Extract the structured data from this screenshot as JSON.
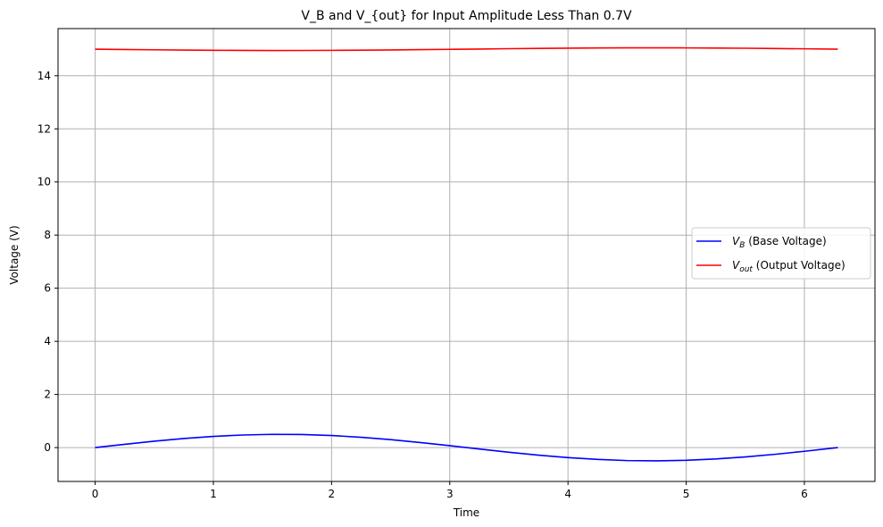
{
  "chart_data": {
    "type": "line",
    "title": "V_B and V_{out} for Input Amplitude Less Than 0.7V",
    "xlabel": "Time",
    "ylabel": "Voltage (V)",
    "xlim": [
      -0.314,
      6.597
    ],
    "ylim": [
      -1.275,
      15.775
    ],
    "xticks": [
      0,
      1,
      2,
      3,
      4,
      5,
      6
    ],
    "yticks": [
      0,
      2,
      4,
      6,
      8,
      10,
      12,
      14
    ],
    "xtick_labels": [
      "0",
      "1",
      "2",
      "3",
      "4",
      "5",
      "6"
    ],
    "ytick_labels": [
      "0",
      "2",
      "4",
      "6",
      "8",
      "10",
      "12",
      "14"
    ],
    "grid": true,
    "legend_position": "center-right",
    "x": [
      0,
      0.25,
      0.5,
      0.75,
      1.0,
      1.25,
      1.5,
      1.75,
      2.0,
      2.25,
      2.5,
      2.75,
      3.0,
      3.25,
      3.5,
      3.75,
      4.0,
      4.25,
      4.5,
      4.75,
      5.0,
      5.25,
      5.5,
      5.75,
      6.0,
      6.283
    ],
    "series": [
      {
        "name": "V_B (Base Voltage)",
        "legend_main": "V",
        "legend_sub": "B",
        "legend_rest": " (Base Voltage)",
        "color": "#0000ff",
        "values": [
          0.0,
          0.124,
          0.24,
          0.341,
          0.421,
          0.474,
          0.499,
          0.492,
          0.455,
          0.389,
          0.299,
          0.191,
          0.071,
          -0.054,
          -0.175,
          -0.286,
          -0.378,
          -0.446,
          -0.489,
          -0.5,
          -0.479,
          -0.429,
          -0.353,
          -0.254,
          -0.14,
          0.0
        ]
      },
      {
        "name": "V_out (Output Voltage)",
        "legend_main": "V",
        "legend_sub": "out",
        "legend_rest": " (Output Voltage)",
        "color": "#ff0000",
        "values": [
          15.0,
          14.988,
          14.976,
          14.966,
          14.958,
          14.953,
          14.95,
          14.951,
          14.955,
          14.961,
          14.97,
          14.981,
          14.993,
          15.005,
          15.018,
          15.029,
          15.038,
          15.045,
          15.049,
          15.05,
          15.048,
          15.043,
          15.035,
          15.025,
          15.014,
          15.0
        ]
      }
    ]
  }
}
